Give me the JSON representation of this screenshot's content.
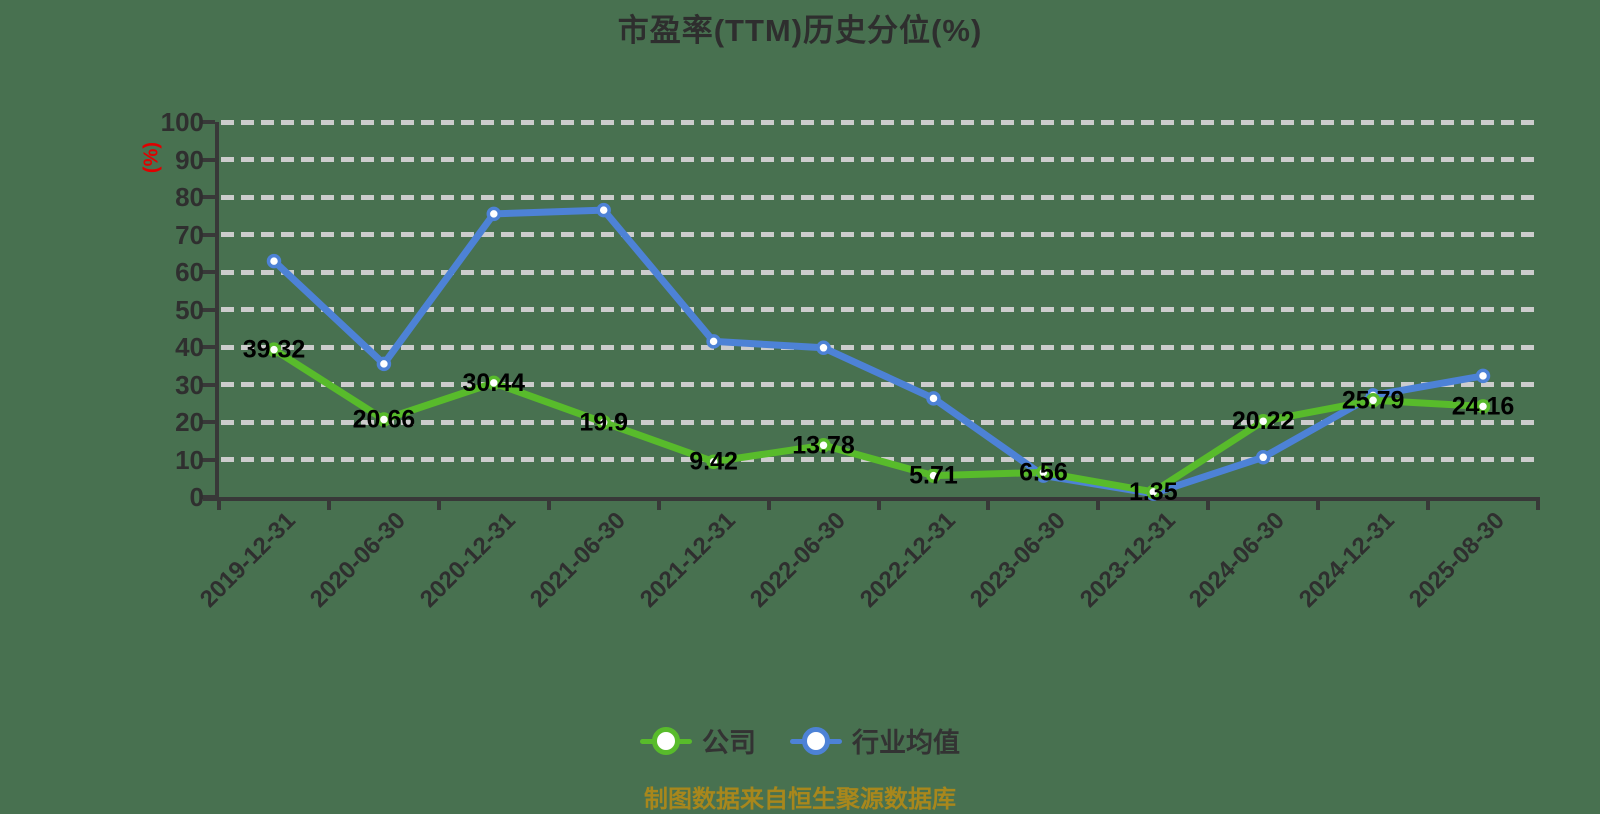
{
  "title": "市盈率(TTM)历史分位(%)",
  "y_axis": {
    "unit": "(%)",
    "ticks": [
      "0",
      "10",
      "20",
      "30",
      "40",
      "50",
      "60",
      "70",
      "80",
      "90",
      "100"
    ]
  },
  "legend": [
    {
      "label": "公司",
      "color": "#58bb2b"
    },
    {
      "label": "行业均值",
      "color": "#4d82d6"
    }
  ],
  "source_note": "制图数据来自恒生聚源数据库",
  "colors": {
    "background": "#487150",
    "axis": "#383838",
    "gridline": "#cccccc",
    "company_line": "#58bb2b",
    "industry_line": "#4d82d6",
    "value_label": "#000000",
    "unit_label": "#e00000",
    "source_text": "#a8871c"
  },
  "chart_data": {
    "type": "line",
    "categories": [
      "2019-12-31",
      "2020-06-30",
      "2020-12-31",
      "2021-06-30",
      "2021-12-31",
      "2022-06-30",
      "2022-12-31",
      "2023-06-30",
      "2023-12-31",
      "2024-06-30",
      "2024-12-31",
      "2025-08-30"
    ],
    "series": [
      {
        "name": "公司",
        "color": "#58bb2b",
        "values": [
          39.32,
          20.66,
          30.44,
          19.9,
          9.42,
          13.78,
          5.71,
          6.56,
          1.35,
          20.22,
          25.79,
          24.16
        ],
        "labels": [
          "39.32",
          "20.66",
          "30.44",
          "19.9",
          "9.42",
          "13.78",
          "5.71",
          "6.56",
          "1.35",
          "20.22",
          "25.79",
          "24.16"
        ]
      },
      {
        "name": "行业均值",
        "color": "#4d82d6",
        "values": [
          62.9,
          35.5,
          75.5,
          76.5,
          41.5,
          39.8,
          26.3,
          5.7,
          0.9,
          10.6,
          27.1,
          32.3
        ],
        "labels": []
      }
    ],
    "ylim": [
      0,
      100
    ],
    "y_tick_step": 10,
    "grid": "horizontal-dashed",
    "legend_position": "bottom",
    "title": "市盈率(TTM)历史分位(%)",
    "ylabel": "(%)"
  }
}
